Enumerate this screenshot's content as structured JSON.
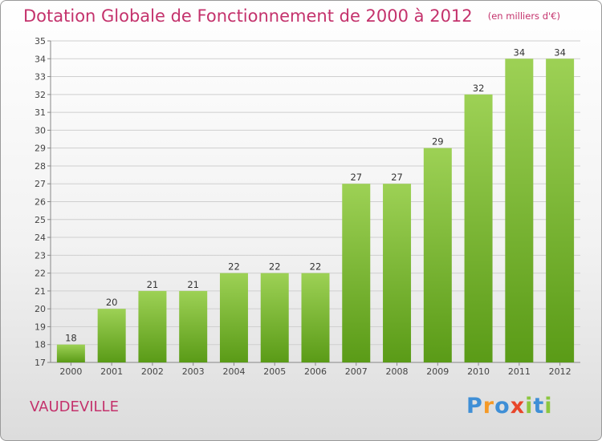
{
  "title": "Dotation Globale de Fonctionnement de 2000 à 2012",
  "unit": "(en milliers d'€)",
  "commune": "VAUDEVILLE",
  "logo": "Proxiti",
  "colors": {
    "title": "#c4326c",
    "bar_top": "#9dd155",
    "bar_bottom": "#5a9b17",
    "grid": "#cfcfcf"
  },
  "chart_data": {
    "type": "bar",
    "title": "Dotation Globale de Fonctionnement de 2000 à 2012",
    "subtitle": "(en milliers d'€)",
    "xlabel": "",
    "ylabel": "",
    "categories": [
      "2000",
      "2001",
      "2002",
      "2003",
      "2004",
      "2005",
      "2006",
      "2007",
      "2008",
      "2009",
      "2010",
      "2011",
      "2012"
    ],
    "values": [
      18,
      20,
      21,
      21,
      22,
      22,
      22,
      27,
      27,
      29,
      32,
      34,
      34
    ],
    "ylim": [
      17,
      35
    ],
    "yticks": [
      17,
      18,
      19,
      20,
      21,
      22,
      23,
      24,
      25,
      26,
      27,
      28,
      29,
      30,
      31,
      32,
      33,
      34,
      35
    ],
    "grid": true,
    "legend": "none"
  }
}
